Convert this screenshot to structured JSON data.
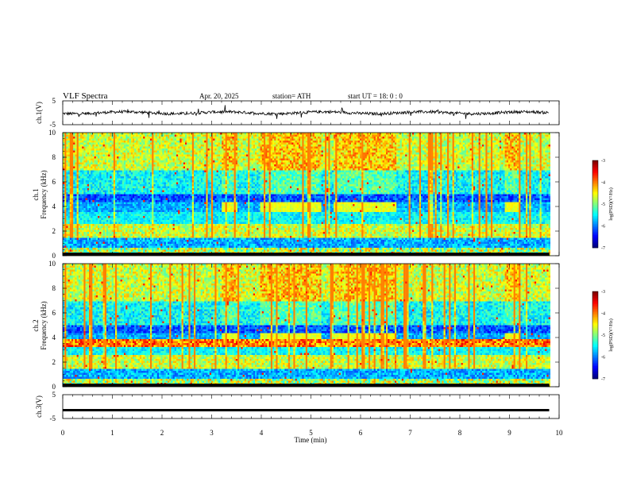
{
  "header": {
    "title": "VLF  Spectra",
    "date": "Apr. 20, 2025",
    "station": "station= ATH",
    "start": "start  UT  =    18: 0   : 0"
  },
  "chart_data": [
    {
      "type": "line",
      "ylabel": "ch.1(V)",
      "ylim": [
        -5,
        5
      ],
      "yticks": [
        "5",
        "-5"
      ],
      "trace_color": "#000000",
      "note": "noisy waveform near 0 V across full time range"
    },
    {
      "type": "heatmap",
      "ylabel": "ch.1",
      "ylabel2": "Frequency  (kHz)",
      "ylim": [
        0,
        10
      ],
      "yticks": [
        "0",
        "2",
        "4",
        "6",
        "8",
        "10"
      ],
      "colorbar": {
        "label": "log(PSD)(V²/Hz)",
        "range": [
          -7,
          -3
        ],
        "ticks": [
          "-3",
          "-4",
          "-5",
          "-6",
          "-7"
        ]
      },
      "transmitter_band_segments_min": [
        [
          3.2,
          3.5
        ],
        [
          3.95,
          5.2
        ],
        [
          5.45,
          6.7
        ],
        [
          8.9,
          9.2
        ]
      ],
      "transmitter_band_khz": [
        3.7,
        4.3
      ]
    },
    {
      "type": "heatmap",
      "ylabel": "ch.2",
      "ylabel2": "Frequency  (kHz)",
      "ylim": [
        0,
        10
      ],
      "yticks": [
        "0",
        "2",
        "4",
        "6",
        "8",
        "10"
      ],
      "colorbar": {
        "label": "log(PSD)(V²/Hz)",
        "range": [
          -7,
          -3
        ],
        "ticks": [
          "-3",
          "-4",
          "-5",
          "-6",
          "-7"
        ]
      },
      "transmitter_band_segments_min": [
        [
          3.2,
          3.5
        ],
        [
          3.95,
          5.2
        ],
        [
          5.45,
          6.7
        ],
        [
          8.9,
          9.2
        ]
      ],
      "transmitter_band_khz": [
        3.7,
        4.3
      ]
    },
    {
      "type": "line",
      "ylabel": "ch.3(V)",
      "ylim": [
        -5,
        5
      ],
      "yticks": [
        "5",
        "-5"
      ],
      "trace_value_v": -1.5,
      "trace_color": "#000000"
    }
  ],
  "xaxis": {
    "label": "Time  (min)",
    "range": [
      0,
      10
    ],
    "ticks": [
      "0",
      "1",
      "2",
      "3",
      "4",
      "5",
      "6",
      "7",
      "8",
      "9",
      "10"
    ]
  },
  "data_end_min": 9.8
}
